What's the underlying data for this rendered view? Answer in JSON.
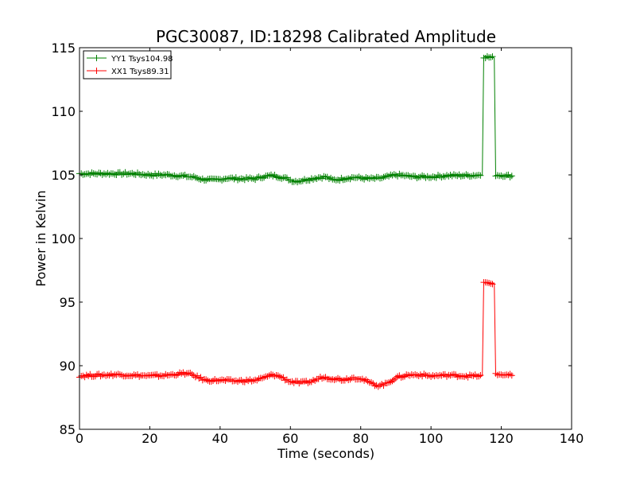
{
  "chart_data": {
    "type": "line",
    "title": "PGC30087, ID:18298 Calibrated Amplitude",
    "xlabel": "Time (seconds)",
    "ylabel": "Power in Kelvin",
    "xlim": [
      0,
      140
    ],
    "ylim": [
      85,
      115
    ],
    "xticks": [
      0,
      20,
      40,
      60,
      80,
      100,
      120,
      140
    ],
    "yticks": [
      85,
      90,
      95,
      100,
      105,
      110,
      115
    ],
    "xtick_labels": [
      "0",
      "20",
      "40",
      "60",
      "80",
      "100",
      "120",
      "140"
    ],
    "ytick_labels": [
      "85",
      "90",
      "95",
      "100",
      "105",
      "110",
      "115"
    ],
    "grid": false,
    "legend_position": "top-left",
    "series": [
      {
        "name": "YY1 Tsys104.98",
        "color": "#008000",
        "marker": "+",
        "points": [
          [
            0,
            105.1
          ],
          [
            5,
            105.1
          ],
          [
            10,
            105.1
          ],
          [
            15,
            105.1
          ],
          [
            20,
            105.0
          ],
          [
            25,
            105.0
          ],
          [
            30,
            104.9
          ],
          [
            33,
            104.8
          ],
          [
            35,
            104.65
          ],
          [
            38,
            104.6
          ],
          [
            40,
            104.65
          ],
          [
            42,
            104.75
          ],
          [
            45,
            104.7
          ],
          [
            48,
            104.7
          ],
          [
            50,
            104.7
          ],
          [
            52,
            104.85
          ],
          [
            55,
            104.95
          ],
          [
            57,
            104.85
          ],
          [
            59,
            104.7
          ],
          [
            61,
            104.5
          ],
          [
            63,
            104.55
          ],
          [
            65,
            104.65
          ],
          [
            68,
            104.8
          ],
          [
            70,
            104.85
          ],
          [
            72,
            104.6
          ],
          [
            74,
            104.65
          ],
          [
            76,
            104.75
          ],
          [
            78,
            104.8
          ],
          [
            80,
            104.75
          ],
          [
            83,
            104.7
          ],
          [
            86,
            104.75
          ],
          [
            90,
            105.0
          ],
          [
            92,
            104.95
          ],
          [
            95,
            104.85
          ],
          [
            100,
            104.85
          ],
          [
            105,
            104.95
          ],
          [
            110,
            104.95
          ],
          [
            114.6,
            105.0
          ],
          [
            115.0,
            114.3
          ],
          [
            118.0,
            114.2
          ],
          [
            118.4,
            105.0
          ],
          [
            121,
            104.95
          ],
          [
            123.5,
            104.9
          ]
        ]
      },
      {
        "name": "XX1 Tsys89.31",
        "color": "#ff0000",
        "marker": "+",
        "points": [
          [
            0,
            89.2
          ],
          [
            5,
            89.25
          ],
          [
            10,
            89.3
          ],
          [
            15,
            89.25
          ],
          [
            20,
            89.2
          ],
          [
            25,
            89.25
          ],
          [
            28,
            89.35
          ],
          [
            30,
            89.4
          ],
          [
            32,
            89.3
          ],
          [
            34,
            89.05
          ],
          [
            36,
            88.85
          ],
          [
            40,
            88.85
          ],
          [
            45,
            88.8
          ],
          [
            50,
            88.85
          ],
          [
            52,
            89.0
          ],
          [
            55,
            89.3
          ],
          [
            57,
            89.15
          ],
          [
            60,
            88.75
          ],
          [
            63,
            88.65
          ],
          [
            66,
            88.75
          ],
          [
            69,
            89.1
          ],
          [
            72,
            89.0
          ],
          [
            75,
            88.9
          ],
          [
            78,
            89.05
          ],
          [
            80,
            89.0
          ],
          [
            83,
            88.6
          ],
          [
            85,
            88.45
          ],
          [
            87,
            88.55
          ],
          [
            90,
            89.05
          ],
          [
            93,
            89.25
          ],
          [
            96,
            89.3
          ],
          [
            100,
            89.2
          ],
          [
            105,
            89.25
          ],
          [
            110,
            89.2
          ],
          [
            114.6,
            89.2
          ],
          [
            115.0,
            96.5
          ],
          [
            118.0,
            96.5
          ],
          [
            118.4,
            89.3
          ],
          [
            121,
            89.3
          ],
          [
            123.5,
            89.2
          ]
        ]
      }
    ]
  }
}
